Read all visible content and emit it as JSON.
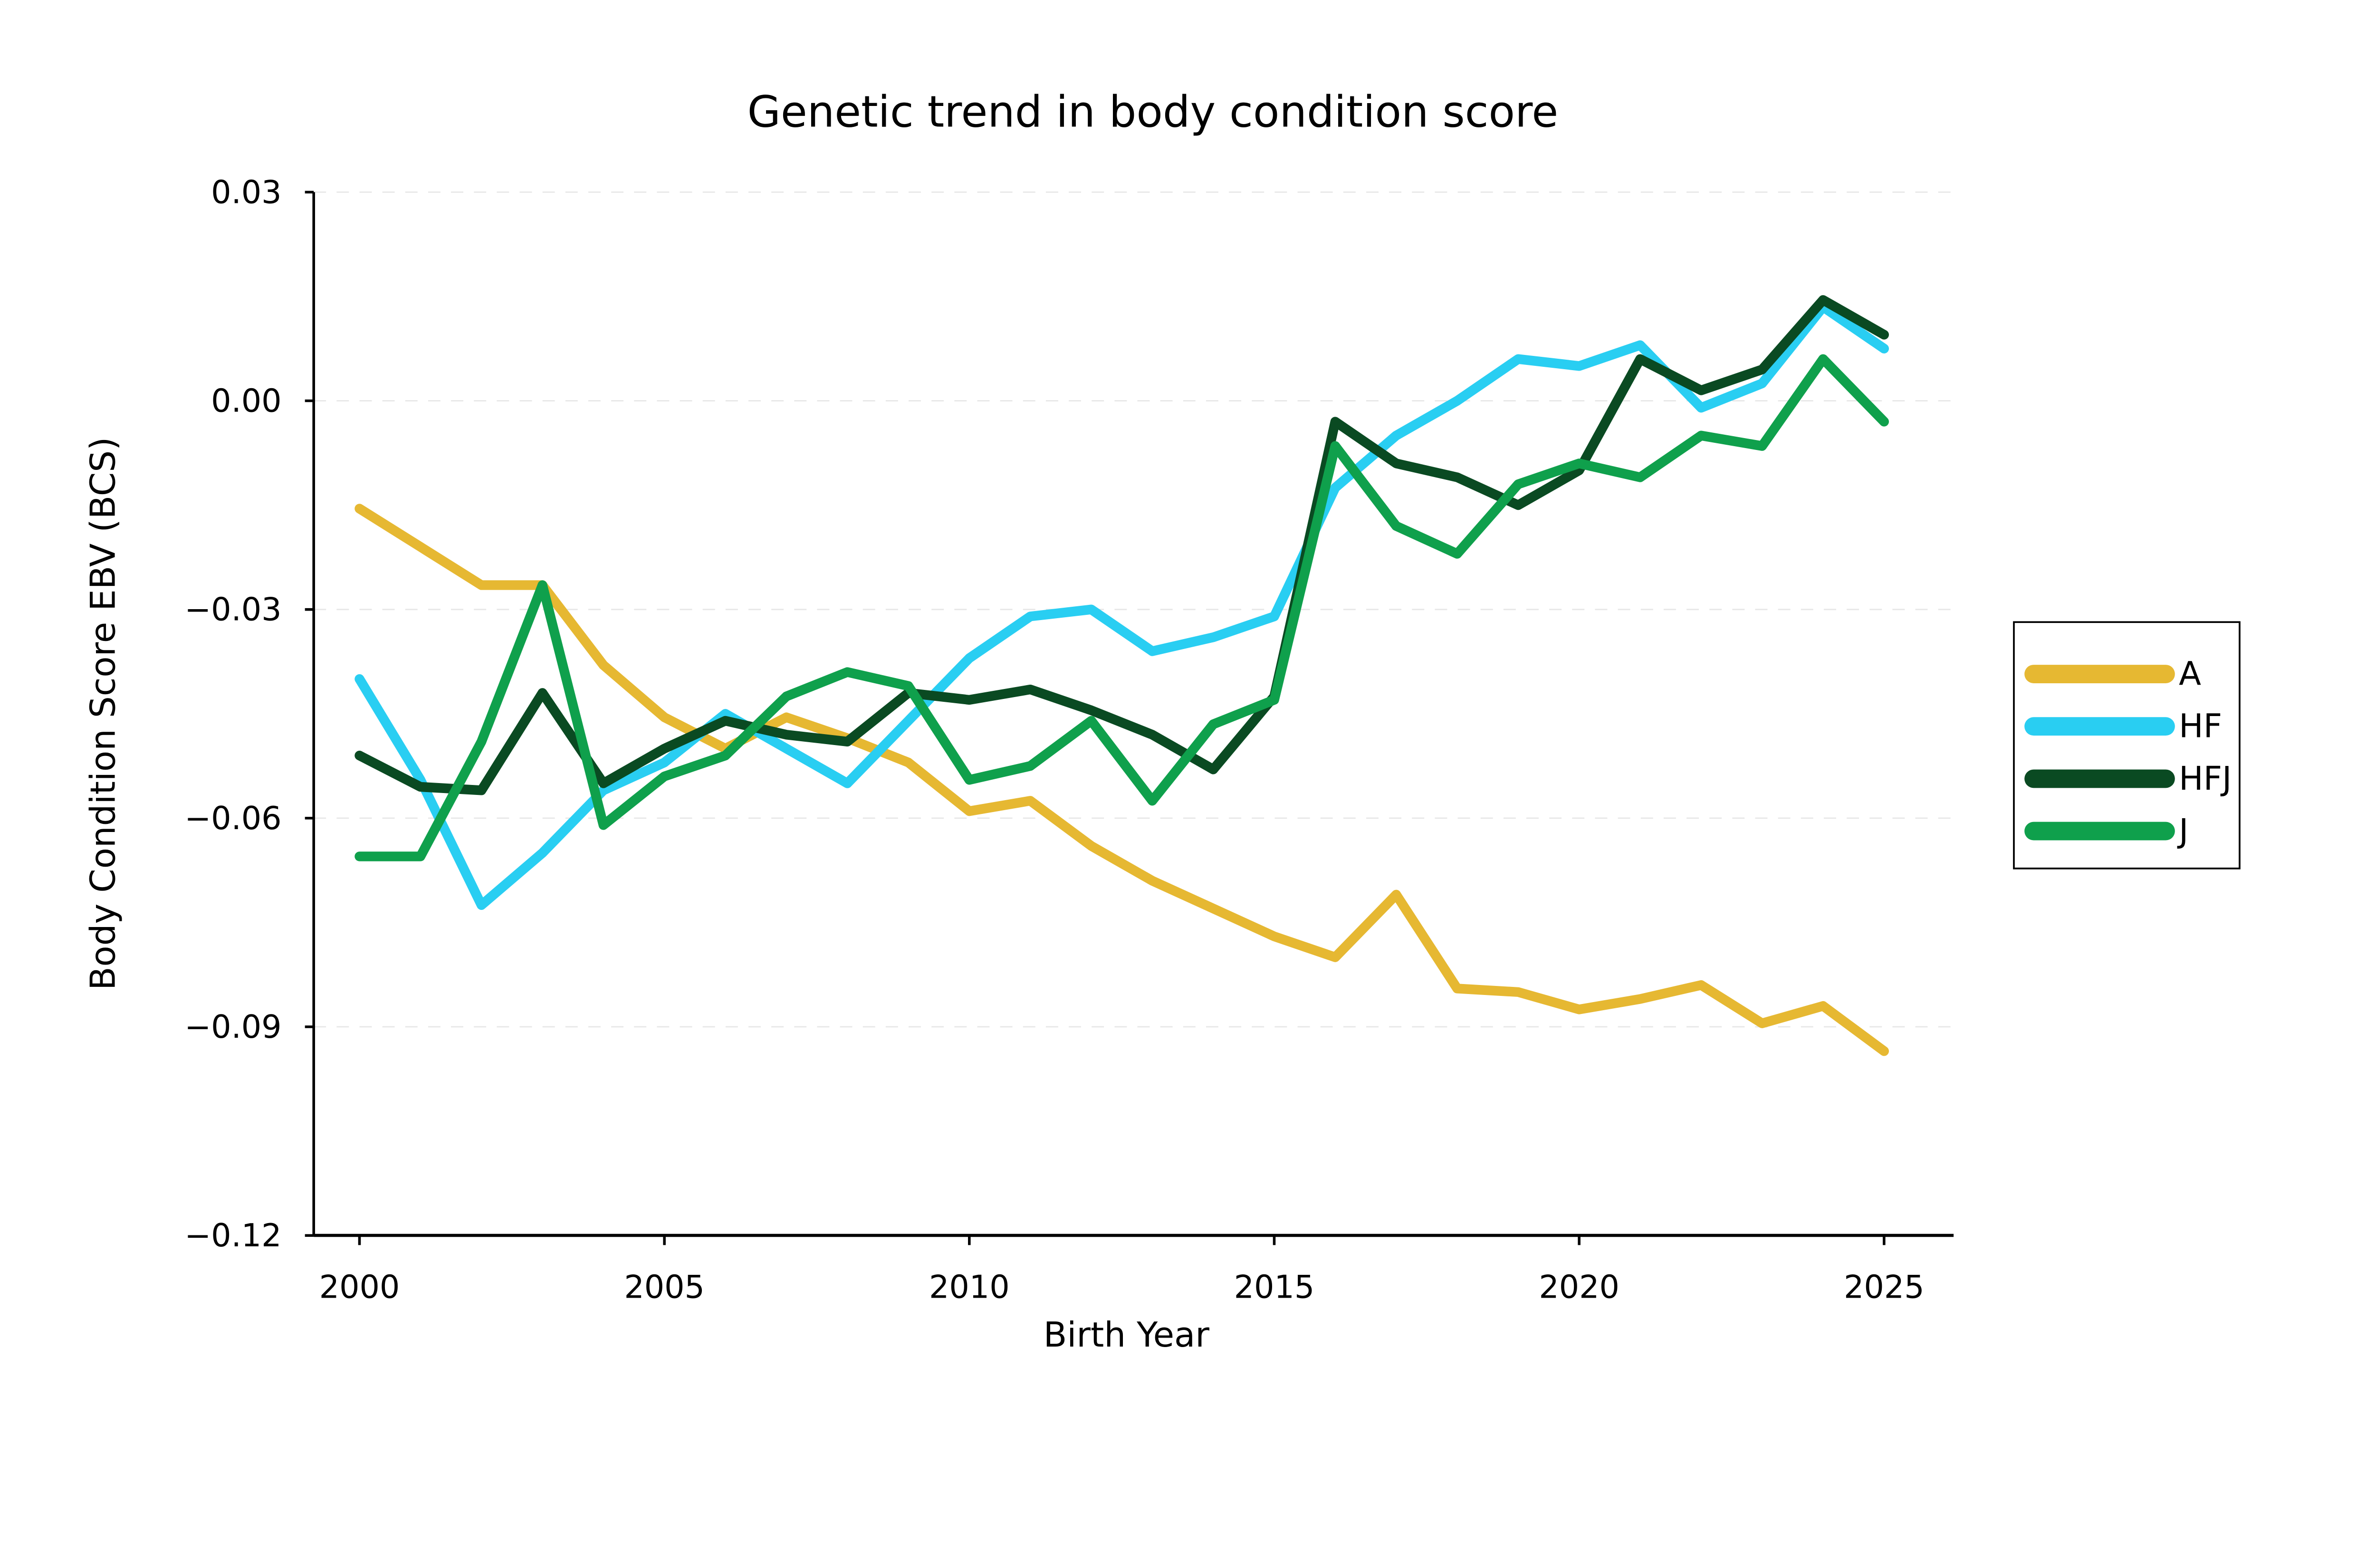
{
  "chart_data": {
    "type": "line",
    "title": "Genetic trend in body condition score",
    "xlabel": "Birth Year",
    "ylabel": "Body Condition Score EBV (BCS)",
    "x": [
      2000,
      2001,
      2002,
      2003,
      2004,
      2005,
      2006,
      2007,
      2008,
      2009,
      2010,
      2011,
      2012,
      2013,
      2014,
      2015,
      2016,
      2017,
      2018,
      2019,
      2020,
      2021,
      2022,
      2023,
      2024,
      2025
    ],
    "series": [
      {
        "name": "A",
        "color": "#E6B832",
        "values": [
          -0.0155,
          -0.021,
          -0.0265,
          -0.0265,
          -0.038,
          -0.0455,
          -0.05,
          -0.0455,
          -0.0485,
          -0.052,
          -0.059,
          -0.0575,
          -0.064,
          -0.069,
          -0.073,
          -0.077,
          -0.08,
          -0.071,
          -0.0845,
          -0.085,
          -0.0875,
          -0.086,
          -0.084,
          -0.0895,
          -0.087,
          -0.0935
        ]
      },
      {
        "name": "HF",
        "color": "#29CEF2",
        "values": [
          -0.04,
          -0.0545,
          -0.0725,
          -0.065,
          -0.056,
          -0.052,
          -0.045,
          -0.05,
          -0.055,
          -0.046,
          -0.037,
          -0.031,
          -0.03,
          -0.036,
          -0.034,
          -0.031,
          -0.0125,
          -0.005,
          0.0,
          0.006,
          0.005,
          0.008,
          -0.001,
          0.0025,
          0.0135,
          0.0075
        ]
      },
      {
        "name": "HFJ",
        "color": "#0A4A22",
        "values": [
          -0.051,
          -0.0555,
          -0.056,
          -0.042,
          -0.055,
          -0.05,
          -0.046,
          -0.048,
          -0.049,
          -0.042,
          -0.043,
          -0.0415,
          -0.0445,
          -0.048,
          -0.053,
          -0.0425,
          -0.003,
          -0.009,
          -0.011,
          -0.015,
          -0.01,
          0.006,
          0.0015,
          0.0045,
          0.0145,
          0.0095
        ]
      },
      {
        "name": "J",
        "color": "#0FA04C",
        "values": [
          -0.0655,
          -0.0655,
          -0.049,
          -0.0265,
          -0.061,
          -0.054,
          -0.051,
          -0.0425,
          -0.039,
          -0.041,
          -0.0545,
          -0.0525,
          -0.046,
          -0.0575,
          -0.0465,
          -0.043,
          -0.0065,
          -0.018,
          -0.022,
          -0.012,
          -0.009,
          -0.011,
          -0.005,
          -0.0065,
          0.006,
          -0.003
        ]
      }
    ],
    "xlim": [
      1999.3,
      2026.1
    ],
    "ylim": [
      -0.12,
      0.03
    ],
    "yticks": [
      0.03,
      0.0,
      -0.03,
      -0.06,
      -0.09,
      -0.12
    ],
    "ytick_labels": [
      "0.03",
      "0.00",
      "−0.03",
      "−0.06",
      "−0.09",
      "−0.12"
    ],
    "xticks": [
      2000,
      2005,
      2010,
      2015,
      2020,
      2025
    ],
    "xtick_labels": [
      "2000",
      "2005",
      "2010",
      "2015",
      "2020",
      "2025"
    ],
    "grid": "horizontal-dashed",
    "grid_color": "#e7e7e7",
    "axis_color": "#000000",
    "legend_position": "right",
    "legend_entries": [
      "A",
      "HF",
      "HFJ",
      "J"
    ]
  }
}
